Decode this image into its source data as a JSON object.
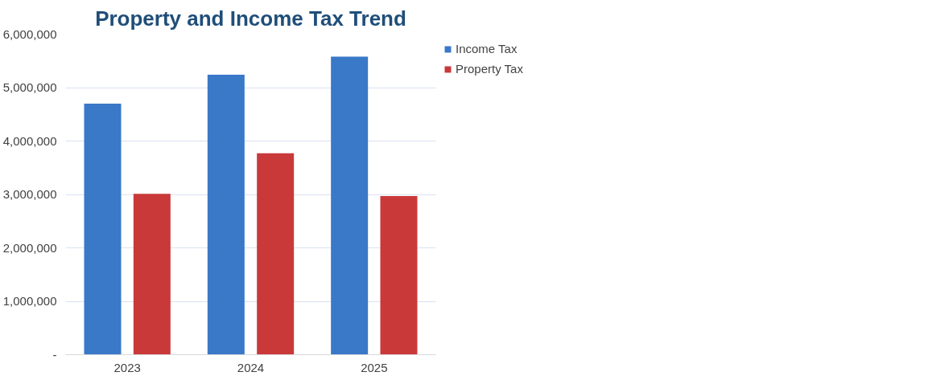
{
  "chart_data": {
    "type": "bar",
    "title": "Property and Income Tax Trend",
    "categories": [
      "2023",
      "2024",
      "2025"
    ],
    "series": [
      {
        "name": "Income Tax",
        "color": "#3a78c8",
        "values": [
          4700000,
          5240000,
          5580000
        ]
      },
      {
        "name": "Property Tax",
        "color": "#c9393a",
        "values": [
          3010000,
          3770000,
          2970000
        ]
      }
    ],
    "ylim": [
      0,
      6000000
    ],
    "yticks": [
      {
        "value": 0,
        "label": "-"
      },
      {
        "value": 1000000,
        "label": "1,000,000"
      },
      {
        "value": 2000000,
        "label": "2,000,000"
      },
      {
        "value": 3000000,
        "label": "3,000,000"
      },
      {
        "value": 4000000,
        "label": "4,000,000"
      },
      {
        "value": 5000000,
        "label": "5,000,000"
      },
      {
        "value": 6000000,
        "label": "6,000,000"
      }
    ],
    "grid": "y",
    "legend": "top right"
  }
}
